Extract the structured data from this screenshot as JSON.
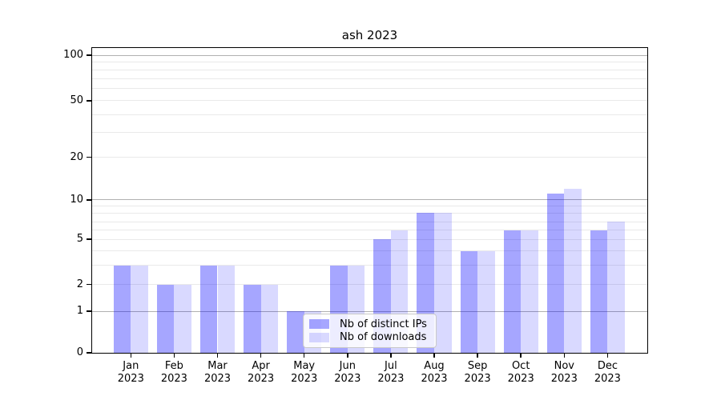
{
  "title": "ash 2023",
  "chart_data": {
    "type": "bar",
    "title": "ash 2023",
    "categories": [
      "Jan",
      "Feb",
      "Mar",
      "Apr",
      "May",
      "Jun",
      "Jul",
      "Aug",
      "Sep",
      "Oct",
      "Nov",
      "Dec"
    ],
    "category_year": "2023",
    "series": [
      {
        "name": "Nb of distinct IPs",
        "color": "rgba(0,0,255,0.35)",
        "values": [
          3,
          2,
          3,
          2,
          1,
          3,
          5,
          8,
          4,
          6,
          11,
          6
        ]
      },
      {
        "name": "Nb of downloads",
        "color": "rgba(0,0,255,0.15)",
        "values": [
          3,
          2,
          3,
          2,
          1,
          3,
          6,
          8,
          4,
          6,
          12,
          7
        ]
      }
    ],
    "yaxis": {
      "scale": "symlog-like",
      "ylim": [
        0,
        100
      ],
      "tick_values": [
        0,
        1,
        2,
        5,
        10,
        20,
        50,
        100
      ],
      "tick_labels": [
        "0",
        "1",
        "2",
        "5",
        "10",
        "20",
        "50",
        "100"
      ],
      "major_gridlines": [
        1,
        10,
        100
      ],
      "minor_gridlines": [
        2,
        3,
        4,
        5,
        6,
        7,
        8,
        9,
        20,
        30,
        40,
        50,
        60,
        70,
        80,
        90
      ]
    },
    "legend": {
      "position": "lower center",
      "entries": [
        "Nb of distinct IPs",
        "Nb of downloads"
      ]
    },
    "colors": {
      "major_grid": "#b0b0b0",
      "minor_grid": "#e9e9e9",
      "spine": "#000000"
    }
  }
}
